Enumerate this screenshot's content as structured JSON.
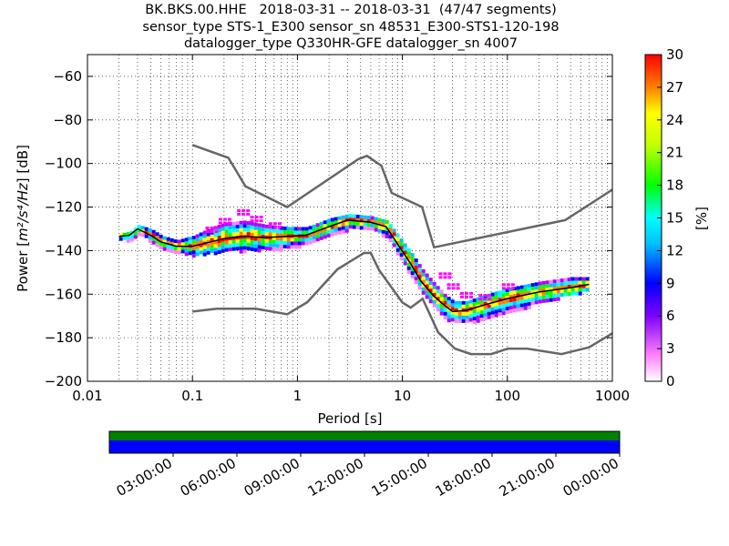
{
  "title_lines": [
    "BK.BKS.00.HHE   2018-03-31 -- 2018-03-31  (47/47 segments)",
    "sensor_type STS-1_E300 sensor_sn 48531_E300-STS1-120-198",
    "datalogger_type Q330HR-GFE datalogger_sn 4007"
  ],
  "chart_data": [
    {
      "type": "heatmap",
      "name": "probabilistic-power-spectral-density",
      "xlabel": "Period [s]",
      "ylabel_prefix": "Power [",
      "ylabel_math": "m²/s⁴/Hz",
      "ylabel_suffix": "] [dB]",
      "xscale": "log",
      "xlim": [
        0.01,
        1000
      ],
      "ylim": [
        -200,
        -50
      ],
      "x_ticks": [
        0.01,
        0.1,
        1,
        10,
        100,
        1000
      ],
      "x_tick_labels": [
        "0.01",
        "0.1",
        "1",
        "10",
        "100",
        "1000"
      ],
      "y_ticks": [
        -200,
        -180,
        -160,
        -140,
        -120,
        -100,
        -80,
        -60
      ],
      "y_tick_labels": [
        "−200",
        "−180",
        "−160",
        "−140",
        "−120",
        "−100",
        "−80",
        "−60"
      ],
      "grid": "dotted",
      "colorbar": {
        "label": "[%]",
        "range": [
          0,
          30
        ],
        "ticks": [
          0,
          3,
          6,
          9,
          12,
          15,
          18,
          21,
          24,
          27,
          30
        ],
        "tick_labels": [
          "0",
          "3",
          "6",
          "9",
          "12",
          "15",
          "18",
          "21",
          "24",
          "27",
          "30"
        ]
      },
      "series": [
        {
          "name": "new-high-noise-model",
          "color": "#666666",
          "x": [
            0.1,
            0.22,
            0.32,
            0.8,
            3.8,
            4.6,
            6.3,
            7.9,
            15.4,
            20,
            354.8,
            1000
          ],
          "y": [
            -91.5,
            -97.4,
            -110.5,
            -120,
            -98,
            -96.5,
            -101,
            -113.5,
            -120,
            -138.5,
            -126,
            -112
          ]
        },
        {
          "name": "new-low-noise-model",
          "color": "#666666",
          "x": [
            0.1,
            0.17,
            0.4,
            0.8,
            1.24,
            2.4,
            4.3,
            5,
            6,
            10,
            12,
            15.6,
            21.9,
            31.6,
            45,
            70,
            101,
            154,
            328,
            600,
            1000
          ],
          "y": [
            -168,
            -166.7,
            -166.7,
            -169.2,
            -163.7,
            -148.6,
            -141.1,
            -141.1,
            -149,
            -163.8,
            -166.2,
            -162.1,
            -177.5,
            -185,
            -187.5,
            -187.5,
            -185,
            -185,
            -187.5,
            -184.4,
            -178
          ]
        },
        {
          "name": "mean-psd",
          "color": "#000000",
          "x": [
            0.02,
            0.025,
            0.03,
            0.04,
            0.05,
            0.07,
            0.1,
            0.15,
            0.2,
            0.3,
            0.5,
            0.8,
            1.2,
            2,
            3,
            5,
            7,
            9,
            12,
            15,
            20,
            25,
            30,
            40,
            60,
            100,
            200,
            400,
            600
          ],
          "y": [
            -133.5,
            -133,
            -130,
            -133,
            -136,
            -138,
            -138,
            -136,
            -134.5,
            -133.5,
            -134,
            -133.5,
            -133,
            -129,
            -126,
            -127,
            -129,
            -137,
            -146,
            -154,
            -161,
            -165,
            -168,
            -167.5,
            -165,
            -162,
            -159,
            -157,
            -155.5
          ]
        },
        {
          "name": "ppsd-band-low",
          "x": [
            0.02,
            0.025,
            0.03,
            0.04,
            0.05,
            0.07,
            0.1,
            0.15,
            0.2,
            0.3,
            0.5,
            0.8,
            1.2,
            2,
            3,
            5,
            7,
            9,
            12,
            15,
            20,
            25,
            30,
            40,
            60,
            100,
            200,
            400,
            600
          ],
          "y": [
            -134,
            -134,
            -131,
            -135,
            -138,
            -140,
            -141,
            -140,
            -139,
            -139,
            -138,
            -138,
            -136,
            -132,
            -129,
            -129,
            -133,
            -141,
            -151,
            -158,
            -165,
            -170,
            -172,
            -172,
            -170,
            -167,
            -163,
            -159,
            -157
          ]
        },
        {
          "name": "ppsd-band-high",
          "x": [
            0.02,
            0.025,
            0.03,
            0.04,
            0.05,
            0.07,
            0.1,
            0.15,
            0.2,
            0.3,
            0.5,
            0.8,
            1.2,
            2,
            3,
            5,
            7,
            9,
            12,
            15,
            20,
            25,
            30,
            40,
            60,
            100,
            200,
            400,
            600
          ],
          "y": [
            -133,
            -132,
            -129,
            -131,
            -134,
            -136,
            -134,
            -130,
            -128,
            -127,
            -129,
            -130,
            -130,
            -126,
            -124,
            -125,
            -127,
            -134,
            -142,
            -149,
            -156,
            -161,
            -164,
            -164,
            -161,
            -158,
            -155,
            -153,
            -153
          ]
        },
        {
          "name": "ppsd-scatter-outliers",
          "x": [
            0.15,
            0.2,
            0.3,
            0.4,
            0.6,
            25,
            30,
            40,
            60,
            100
          ],
          "y": [
            -129,
            -125,
            -121,
            -124,
            -127,
            -150,
            -155,
            -159,
            -160,
            -155
          ]
        }
      ]
    },
    {
      "type": "timeline",
      "name": "data-availability",
      "tick_labels": [
        "03:00:00",
        "06:00:00",
        "09:00:00",
        "12:00:00",
        "15:00:00",
        "18:00:00",
        "21:00:00",
        "00:00:00"
      ],
      "tick_hours": [
        3,
        6,
        9,
        12,
        15,
        18,
        21,
        24
      ],
      "range_hours": [
        0,
        24
      ],
      "colors": {
        "coverage": "#008000",
        "used": "#0000ff"
      }
    }
  ]
}
